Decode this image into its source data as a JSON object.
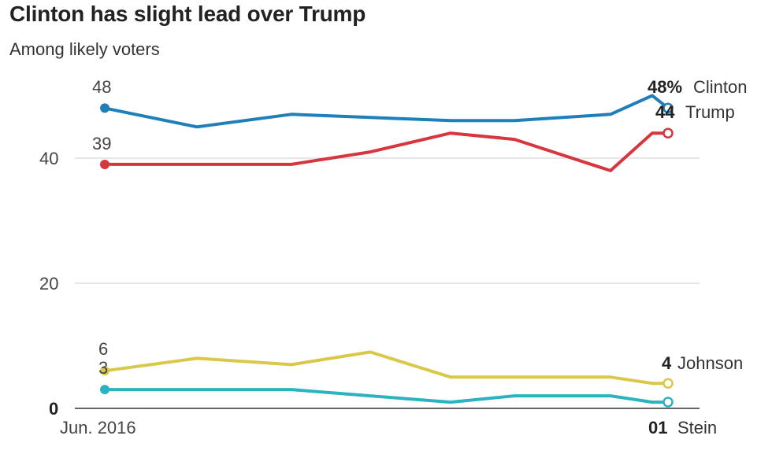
{
  "chart_data": {
    "type": "line",
    "title": "Clinton has slight lead over Trump",
    "subtitle": "Among likely voters",
    "x_start_label": "Jun. 2016",
    "x": [
      0,
      1,
      2,
      3,
      4,
      5,
      6,
      7,
      8
    ],
    "y_ticks": [
      0,
      20,
      40
    ],
    "ylim": [
      0,
      50
    ],
    "grid": true,
    "series": [
      {
        "name": "Clinton",
        "color": "#1f7fbb",
        "start_label": "48",
        "end_label": "48%",
        "values": [
          48,
          45,
          47,
          46.5,
          46,
          46,
          47,
          50,
          48
        ]
      },
      {
        "name": "Trump",
        "color": "#d8363f",
        "start_label": "39",
        "end_label": "44",
        "values": [
          39,
          39,
          39,
          41,
          44,
          43,
          38,
          44,
          44
        ]
      },
      {
        "name": "Johnson",
        "color": "#d9c84a",
        "start_label": "6",
        "end_label": "4",
        "values": [
          6,
          8,
          7,
          9,
          5,
          5,
          5,
          4,
          4
        ]
      },
      {
        "name": "Stein",
        "color": "#2bb3bf",
        "start_label": "3",
        "end_label": "01",
        "values": [
          3,
          3,
          3,
          2,
          1,
          2,
          2,
          1,
          1
        ]
      }
    ]
  }
}
